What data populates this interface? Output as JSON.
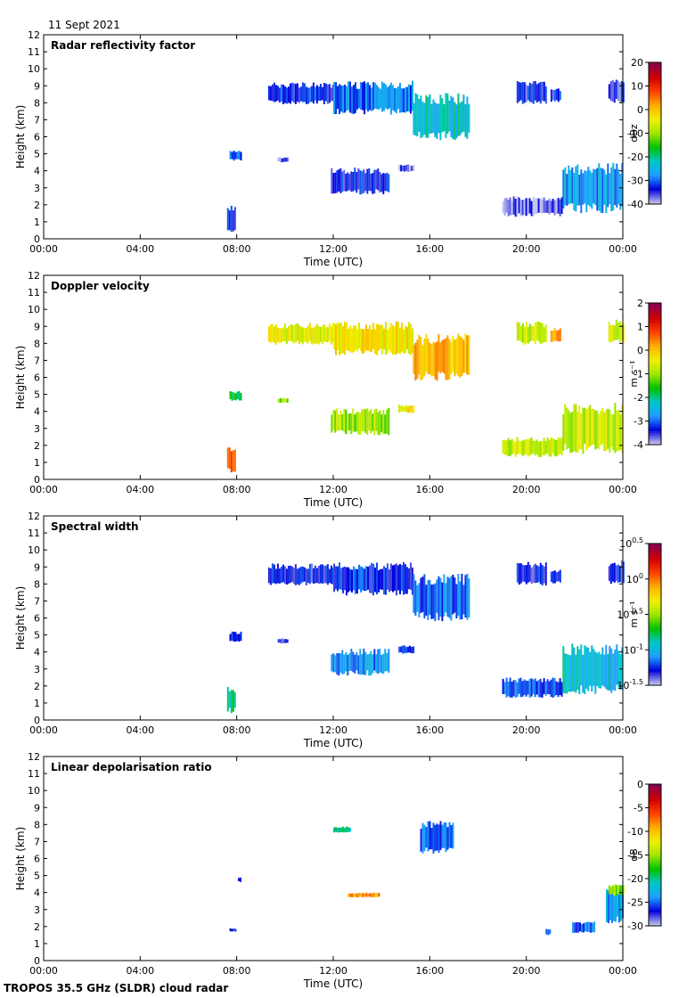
{
  "header": {
    "date": "11 Sept 2021"
  },
  "footer": {
    "instrument": "TROPOS 35.5 GHz (SLDR) cloud radar"
  },
  "colors": {
    "ramp": [
      "#c4c4ec",
      "#0000dd",
      "#1e9eff",
      "#00c8c8",
      "#00c000",
      "#9ee600",
      "#f0f000",
      "#ffb000",
      "#ff4000",
      "#d00000",
      "#8b0050"
    ],
    "missing": "#d8d8d8"
  },
  "chart_data": [
    {
      "type": "heatmap",
      "title": "Radar reflectivity factor",
      "xlabel": "Time (UTC)",
      "ylabel": "Height (km)",
      "x_ticks": [
        "00:00",
        "04:00",
        "08:00",
        "12:00",
        "16:00",
        "20:00",
        "00:00"
      ],
      "xlim_hours": [
        0,
        24
      ],
      "ylim": [
        0,
        12
      ],
      "y_ticks": [
        0,
        1,
        2,
        3,
        4,
        5,
        6,
        7,
        8,
        9,
        10,
        11,
        12
      ],
      "colorbar": {
        "unit": "dBz",
        "min": -40,
        "max": 20,
        "ticks": [
          "20",
          "10",
          "0",
          "-10",
          "-20",
          "-30",
          "-40"
        ]
      },
      "features": [
        {
          "t0": 9.3,
          "t1": 12.0,
          "h0": 7.9,
          "h1": 9.2,
          "level": 0.12
        },
        {
          "t0": 12.0,
          "t1": 15.3,
          "h0": 7.3,
          "h1": 9.3,
          "level": 0.18
        },
        {
          "t0": 15.3,
          "t1": 17.6,
          "h0": 5.8,
          "h1": 8.6,
          "level": 0.28
        },
        {
          "t0": 7.7,
          "t1": 8.2,
          "h0": 4.6,
          "h1": 5.2,
          "level": 0.15
        },
        {
          "t0": 9.7,
          "t1": 10.1,
          "h0": 4.5,
          "h1": 4.8,
          "level": 0.05
        },
        {
          "t0": 11.9,
          "t1": 14.3,
          "h0": 2.6,
          "h1": 4.2,
          "level": 0.1
        },
        {
          "t0": 14.7,
          "t1": 15.3,
          "h0": 3.9,
          "h1": 4.4,
          "level": 0.05
        },
        {
          "t0": 7.6,
          "t1": 7.9,
          "h0": 0.4,
          "h1": 2.0,
          "level": 0.12
        },
        {
          "t0": 19.6,
          "t1": 20.8,
          "h0": 7.9,
          "h1": 9.3,
          "level": 0.1
        },
        {
          "t0": 21.0,
          "t1": 21.4,
          "h0": 8.0,
          "h1": 8.9,
          "level": 0.1
        },
        {
          "t0": 23.4,
          "t1": 24.0,
          "h0": 8.0,
          "h1": 9.4,
          "level": 0.08
        },
        {
          "t0": 19.0,
          "t1": 21.5,
          "h0": 1.3,
          "h1": 2.5,
          "level": 0.05
        },
        {
          "t0": 21.5,
          "t1": 24.0,
          "h0": 1.5,
          "h1": 4.5,
          "level": 0.22
        }
      ]
    },
    {
      "type": "heatmap",
      "title": "Doppler velocity",
      "xlabel": "Time (UTC)",
      "ylabel": "Height (km)",
      "x_ticks": [
        "00:00",
        "04:00",
        "08:00",
        "12:00",
        "16:00",
        "20:00",
        "00:00"
      ],
      "xlim_hours": [
        0,
        24
      ],
      "ylim": [
        0,
        12
      ],
      "y_ticks": [
        0,
        1,
        2,
        3,
        4,
        5,
        6,
        7,
        8,
        9,
        10,
        11,
        12
      ],
      "colorbar": {
        "unit": "m s⁻¹",
        "min": -4,
        "max": 2,
        "ticks": [
          "2",
          "1",
          "0",
          "-1",
          "-2",
          "-3",
          "-4"
        ]
      },
      "features": [
        {
          "t0": 9.3,
          "t1": 12.0,
          "h0": 7.9,
          "h1": 9.2,
          "level": 0.58
        },
        {
          "t0": 12.0,
          "t1": 15.3,
          "h0": 7.3,
          "h1": 9.3,
          "level": 0.62
        },
        {
          "t0": 15.3,
          "t1": 17.6,
          "h0": 5.8,
          "h1": 8.6,
          "level": 0.68
        },
        {
          "t0": 7.7,
          "t1": 8.2,
          "h0": 4.6,
          "h1": 5.2,
          "level": 0.38
        },
        {
          "t0": 9.7,
          "t1": 10.1,
          "h0": 4.5,
          "h1": 4.8,
          "level": 0.5
        },
        {
          "t0": 11.9,
          "t1": 14.3,
          "h0": 2.6,
          "h1": 4.2,
          "level": 0.5
        },
        {
          "t0": 14.7,
          "t1": 15.3,
          "h0": 3.9,
          "h1": 4.4,
          "level": 0.62
        },
        {
          "t0": 7.6,
          "t1": 7.9,
          "h0": 0.4,
          "h1": 2.0,
          "level": 0.82
        },
        {
          "t0": 19.6,
          "t1": 20.8,
          "h0": 7.9,
          "h1": 9.3,
          "level": 0.55
        },
        {
          "t0": 21.0,
          "t1": 21.4,
          "h0": 8.0,
          "h1": 8.9,
          "level": 0.7
        },
        {
          "t0": 23.4,
          "t1": 24.0,
          "h0": 8.0,
          "h1": 9.4,
          "level": 0.58
        },
        {
          "t0": 19.0,
          "t1": 21.5,
          "h0": 1.3,
          "h1": 2.5,
          "level": 0.55
        },
        {
          "t0": 21.5,
          "t1": 24.0,
          "h0": 1.5,
          "h1": 4.5,
          "level": 0.55
        }
      ]
    },
    {
      "type": "heatmap",
      "title": "Spectral width",
      "xlabel": "Time (UTC)",
      "ylabel": "Height (km)",
      "x_ticks": [
        "00:00",
        "04:00",
        "08:00",
        "12:00",
        "16:00",
        "20:00",
        "00:00"
      ],
      "xlim_hours": [
        0,
        24
      ],
      "ylim": [
        0,
        12
      ],
      "y_ticks": [
        0,
        1,
        2,
        3,
        4,
        5,
        6,
        7,
        8,
        9,
        10,
        11,
        12
      ],
      "colorbar": {
        "unit": "m s⁻¹",
        "scale": "log",
        "min_exponent": -1.5,
        "max_exponent": 0.5,
        "ticks": [
          {
            "base": "10",
            "exp": "0.5"
          },
          {
            "base": "10",
            "exp": "0"
          },
          {
            "base": "10",
            "exp": "-0.5"
          },
          {
            "base": "10",
            "exp": "-1"
          },
          {
            "base": "10",
            "exp": "-1.5"
          }
        ]
      },
      "features": [
        {
          "t0": 9.3,
          "t1": 12.0,
          "h0": 7.9,
          "h1": 9.2,
          "level": 0.1
        },
        {
          "t0": 12.0,
          "t1": 15.3,
          "h0": 7.3,
          "h1": 9.3,
          "level": 0.12
        },
        {
          "t0": 15.3,
          "t1": 17.6,
          "h0": 5.8,
          "h1": 8.6,
          "level": 0.16
        },
        {
          "t0": 7.7,
          "t1": 8.2,
          "h0": 4.6,
          "h1": 5.2,
          "level": 0.1
        },
        {
          "t0": 9.7,
          "t1": 10.1,
          "h0": 4.5,
          "h1": 4.8,
          "level": 0.1
        },
        {
          "t0": 11.9,
          "t1": 14.3,
          "h0": 2.6,
          "h1": 4.2,
          "level": 0.2
        },
        {
          "t0": 14.7,
          "t1": 15.3,
          "h0": 3.9,
          "h1": 4.4,
          "level": 0.12
        },
        {
          "t0": 7.6,
          "t1": 7.9,
          "h0": 0.4,
          "h1": 2.0,
          "level": 0.35
        },
        {
          "t0": 19.6,
          "t1": 20.8,
          "h0": 7.9,
          "h1": 9.3,
          "level": 0.1
        },
        {
          "t0": 21.0,
          "t1": 21.4,
          "h0": 8.0,
          "h1": 8.9,
          "level": 0.1
        },
        {
          "t0": 23.4,
          "t1": 24.0,
          "h0": 8.0,
          "h1": 9.4,
          "level": 0.1
        },
        {
          "t0": 19.0,
          "t1": 21.5,
          "h0": 1.3,
          "h1": 2.5,
          "level": 0.14
        },
        {
          "t0": 21.5,
          "t1": 24.0,
          "h0": 1.5,
          "h1": 4.5,
          "level": 0.26
        }
      ]
    },
    {
      "type": "heatmap",
      "title": "Linear depolarisation ratio",
      "xlabel": "Time (UTC)",
      "ylabel": "Height (km)",
      "x_ticks": [
        "00:00",
        "04:00",
        "08:00",
        "12:00",
        "16:00",
        "20:00",
        "00:00"
      ],
      "xlim_hours": [
        0,
        24
      ],
      "ylim": [
        0,
        12
      ],
      "y_ticks": [
        0,
        1,
        2,
        3,
        4,
        5,
        6,
        7,
        8,
        9,
        10,
        11,
        12
      ],
      "colorbar": {
        "unit": "dB",
        "min": -30,
        "max": 0,
        "ticks": [
          "0",
          "-5",
          "-10",
          "-15",
          "-20",
          "-25",
          "-30"
        ]
      },
      "features": [
        {
          "t0": 12.0,
          "t1": 12.7,
          "h0": 7.5,
          "h1": 7.9,
          "level": 0.3
        },
        {
          "t0": 15.6,
          "t1": 17.0,
          "h0": 6.3,
          "h1": 8.2,
          "level": 0.15
        },
        {
          "t0": 12.6,
          "t1": 13.9,
          "h0": 3.7,
          "h1": 4.0,
          "level": 0.72
        },
        {
          "t0": 7.7,
          "t1": 7.95,
          "h0": 1.7,
          "h1": 1.9,
          "level": 0.12
        },
        {
          "t0": 8.05,
          "t1": 8.15,
          "h0": 4.6,
          "h1": 4.9,
          "level": 0.1
        },
        {
          "t0": 20.8,
          "t1": 21.0,
          "h0": 1.5,
          "h1": 1.9,
          "level": 0.12
        },
        {
          "t0": 21.9,
          "t1": 22.8,
          "h0": 1.6,
          "h1": 2.3,
          "level": 0.15
        },
        {
          "t0": 23.3,
          "t1": 24.0,
          "h0": 2.2,
          "h1": 4.3,
          "level": 0.22
        },
        {
          "t0": 23.4,
          "t1": 24.0,
          "h0": 3.8,
          "h1": 4.5,
          "level": 0.5
        }
      ]
    }
  ]
}
